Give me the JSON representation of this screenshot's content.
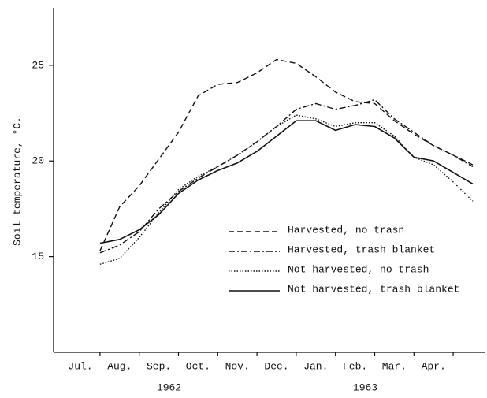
{
  "chart_data": {
    "type": "line",
    "y_label": "Soil temperature, °C.",
    "categories": [
      "Jul.",
      null,
      "Aug.",
      null,
      "Sep.",
      null,
      "Oct.",
      null,
      "Nov.",
      null,
      "Dec.",
      null,
      "Jan.",
      null,
      "Feb.",
      null,
      "Mar.",
      null,
      "Apr.",
      null,
      null
    ],
    "year_labels": [
      "1962",
      "1963"
    ],
    "ylim": [
      10,
      28
    ],
    "yticks": [
      15,
      20,
      25
    ],
    "series": [
      {
        "name": "Harvested, no trasn",
        "color": "#111111",
        "style": "dashed",
        "values": [
          null,
          15.3,
          17.6,
          18.7,
          20.1,
          21.5,
          23.4,
          24.0,
          24.1,
          24.6,
          25.3,
          25.1,
          24.4,
          23.6,
          23.1,
          23.0,
          22.1,
          21.4,
          20.8,
          20.3,
          19.8
        ]
      },
      {
        "name": "Harvested, trash blanket",
        "color": "#111111",
        "style": "dashdot",
        "values": [
          null,
          15.2,
          15.6,
          16.3,
          17.5,
          18.4,
          19.1,
          19.7,
          20.3,
          21.0,
          21.8,
          22.7,
          23.0,
          22.7,
          22.9,
          23.2,
          22.2,
          21.5,
          20.8,
          20.3,
          19.7
        ]
      },
      {
        "name": "Not harvested, no trash",
        "color": "#111111",
        "style": "dotted",
        "values": [
          null,
          14.6,
          14.9,
          16.0,
          17.3,
          18.5,
          19.2,
          19.7,
          20.3,
          21.0,
          21.8,
          22.4,
          22.2,
          21.8,
          22.0,
          22.0,
          21.3,
          20.2,
          19.8,
          18.9,
          17.9
        ]
      },
      {
        "name": "Not harvested, trash blanket",
        "color": "#111111",
        "style": "solid",
        "values": [
          null,
          15.7,
          15.9,
          16.4,
          17.2,
          18.3,
          19.0,
          19.5,
          19.9,
          20.5,
          21.3,
          22.1,
          22.1,
          21.6,
          21.9,
          21.8,
          21.2,
          20.2,
          20.0,
          19.4,
          18.8
        ]
      }
    ]
  }
}
